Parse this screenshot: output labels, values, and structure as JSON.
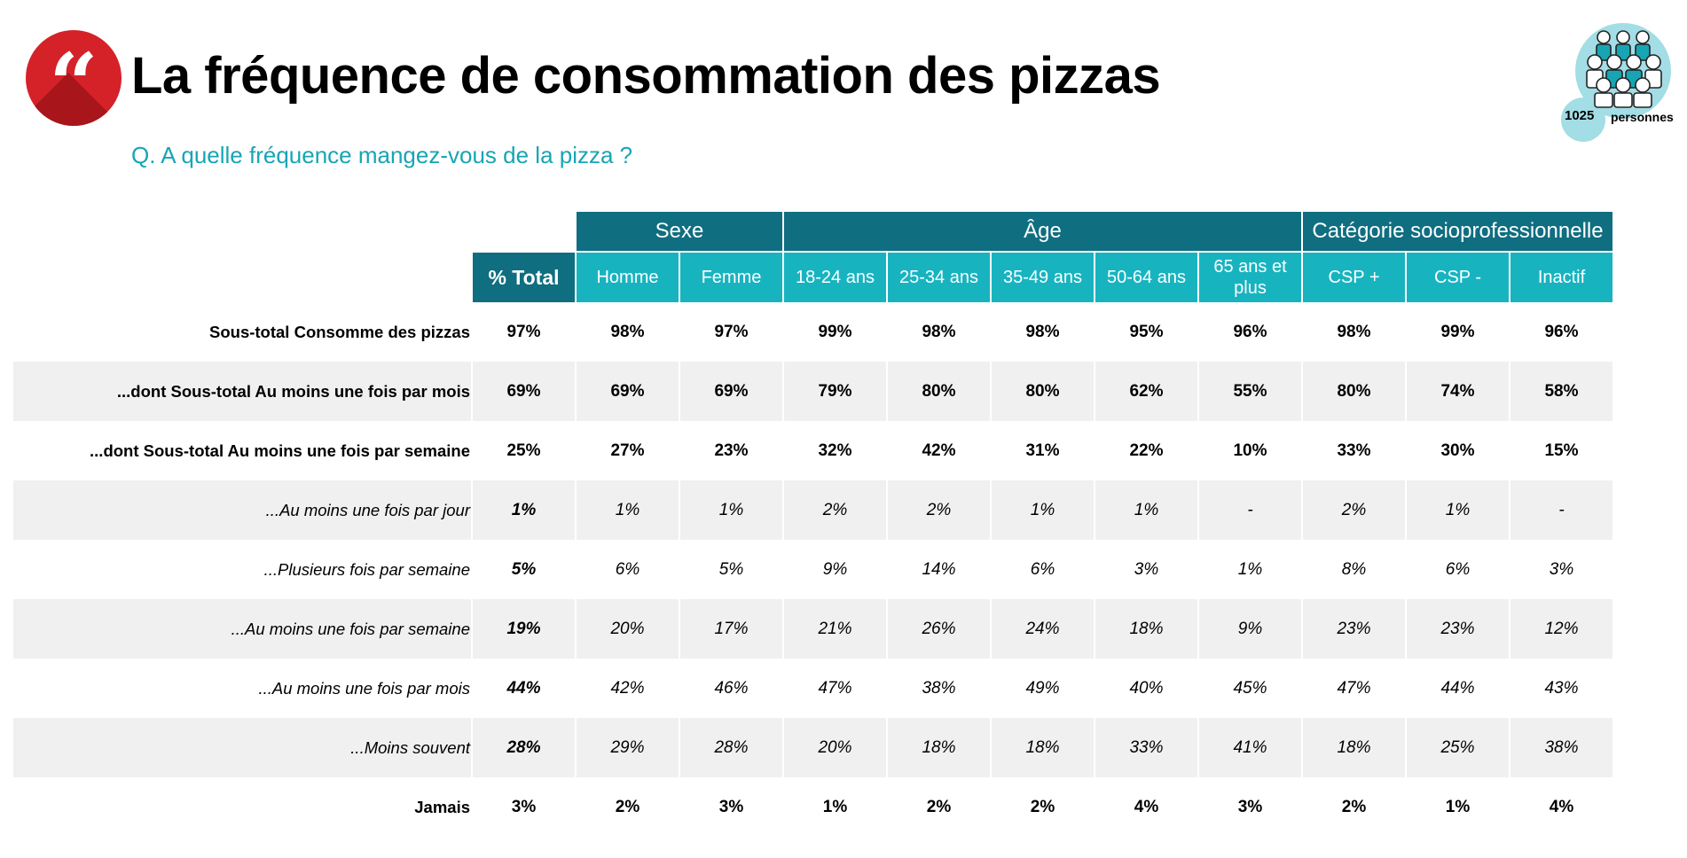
{
  "header": {
    "quote_glyph": "“",
    "title": "La fréquence de consommation des pizzas",
    "question": "Q. A quelle fréquence mangez-vous de la pizza ?",
    "sample_count": "1025",
    "sample_unit": "personnes"
  },
  "colors": {
    "brand_red": "#d42228",
    "dark_teal": "#0f6e80",
    "light_teal": "#17b4c0",
    "question_teal": "#17a5b4",
    "row_band": "#f0f0f0"
  },
  "icons": {
    "quote": "quote-icon",
    "people": "people-group-icon"
  },
  "table": {
    "groups": [
      "Sexe",
      "Âge",
      "Catégorie socioprofessionnelle"
    ],
    "columns": [
      "% Total",
      "Homme",
      "Femme",
      "18-24 ans",
      "25-34 ans",
      "35-49 ans",
      "50-64 ans",
      "65 ans et plus",
      "CSP +",
      "CSP -",
      "Inactif"
    ],
    "rows": [
      {
        "label": "Sous-total Consomme des pizzas",
        "values": [
          "97%",
          "98%",
          "97%",
          "99%",
          "98%",
          "98%",
          "95%",
          "96%",
          "98%",
          "99%",
          "96%"
        ]
      },
      {
        "label": "...dont Sous-total Au moins une fois par mois",
        "values": [
          "69%",
          "69%",
          "69%",
          "79%",
          "80%",
          "80%",
          "62%",
          "55%",
          "80%",
          "74%",
          "58%"
        ]
      },
      {
        "label": "...dont Sous-total Au moins une fois par semaine",
        "values": [
          "25%",
          "27%",
          "23%",
          "32%",
          "42%",
          "31%",
          "22%",
          "10%",
          "33%",
          "30%",
          "15%"
        ]
      },
      {
        "label": "...Au moins une fois par jour",
        "values": [
          "1%",
          "1%",
          "1%",
          "2%",
          "2%",
          "1%",
          "1%",
          "-",
          "2%",
          "1%",
          "-"
        ]
      },
      {
        "label": "...Plusieurs fois par semaine",
        "values": [
          "5%",
          "6%",
          "5%",
          "9%",
          "14%",
          "6%",
          "3%",
          "1%",
          "8%",
          "6%",
          "3%"
        ]
      },
      {
        "label": "...Au moins une fois par semaine",
        "values": [
          "19%",
          "20%",
          "17%",
          "21%",
          "26%",
          "24%",
          "18%",
          "9%",
          "23%",
          "23%",
          "12%"
        ]
      },
      {
        "label": "...Au moins une fois par mois",
        "values": [
          "44%",
          "42%",
          "46%",
          "47%",
          "38%",
          "49%",
          "40%",
          "45%",
          "47%",
          "44%",
          "43%"
        ]
      },
      {
        "label": "...Moins souvent",
        "values": [
          "28%",
          "29%",
          "28%",
          "20%",
          "18%",
          "18%",
          "33%",
          "41%",
          "18%",
          "25%",
          "38%"
        ]
      },
      {
        "label": "Jamais",
        "values": [
          "3%",
          "2%",
          "3%",
          "1%",
          "2%",
          "2%",
          "4%",
          "3%",
          "2%",
          "1%",
          "4%"
        ]
      }
    ]
  }
}
